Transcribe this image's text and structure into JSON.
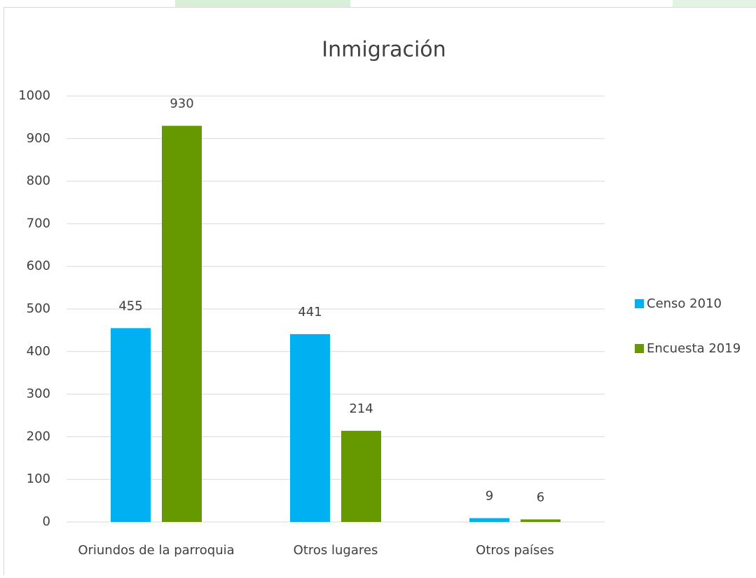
{
  "chart_data": {
    "type": "bar",
    "title": "Inmigración",
    "categories": [
      "Oriundos de la parroquia",
      "Otros lugares",
      "Otros países"
    ],
    "series": [
      {
        "name": "Censo 2010",
        "color": "#00b0f0",
        "values": [
          455,
          441,
          9
        ]
      },
      {
        "name": "Encuesta 2019",
        "color": "#669900",
        "values": [
          930,
          214,
          6
        ]
      }
    ],
    "ylim": [
      0,
      1000
    ],
    "yticks": [
      0,
      100,
      200,
      300,
      400,
      500,
      600,
      700,
      800,
      900,
      1000
    ],
    "grid": true,
    "legend": "right",
    "data_labels": true
  }
}
